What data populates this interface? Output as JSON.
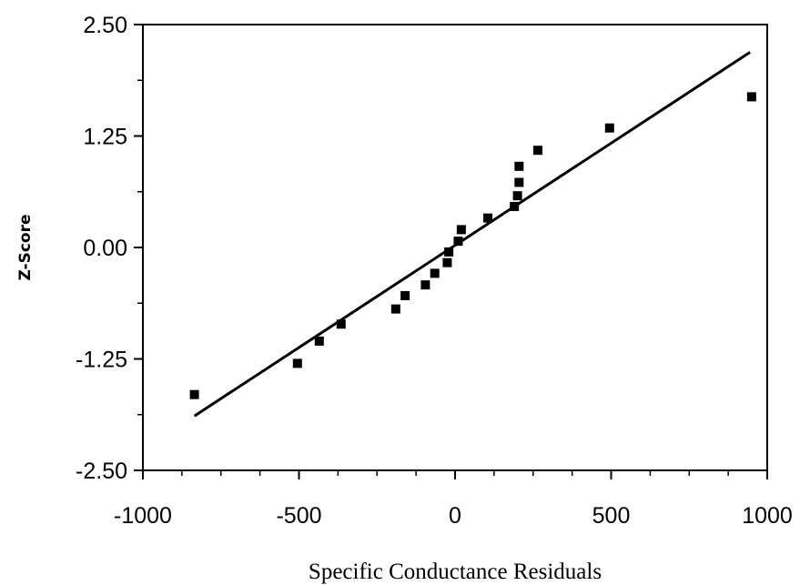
{
  "chart_data": {
    "type": "scatter",
    "title": "",
    "xlabel": "Specific Conductance Residuals",
    "ylabel": "Z-Score",
    "xlim": [
      -1000,
      1000
    ],
    "ylim": [
      -2.5,
      2.5
    ],
    "x_ticks": [
      -1000,
      -500,
      0,
      500,
      1000
    ],
    "x_tick_labels": [
      "-1000",
      "-500",
      "0",
      "500",
      "1000"
    ],
    "y_ticks": [
      -2.5,
      -1.25,
      0,
      1.25,
      2.5
    ],
    "y_tick_labels": [
      "-2.50",
      "-1.25",
      "0.00",
      "1.25",
      "2.50"
    ],
    "grid": false,
    "series": [
      {
        "type": "scatter",
        "marker": "square",
        "color": "#000000",
        "points": [
          {
            "x": -835,
            "y": -1.65
          },
          {
            "x": -505,
            "y": -1.3
          },
          {
            "x": -435,
            "y": -1.05
          },
          {
            "x": -365,
            "y": -0.86
          },
          {
            "x": -190,
            "y": -0.69
          },
          {
            "x": -160,
            "y": -0.54
          },
          {
            "x": -95,
            "y": -0.42
          },
          {
            "x": -65,
            "y": -0.29
          },
          {
            "x": -25,
            "y": -0.17
          },
          {
            "x": -20,
            "y": -0.05
          },
          {
            "x": 10,
            "y": 0.07
          },
          {
            "x": 20,
            "y": 0.2
          },
          {
            "x": 105,
            "y": 0.33
          },
          {
            "x": 190,
            "y": 0.46
          },
          {
            "x": 200,
            "y": 0.58
          },
          {
            "x": 205,
            "y": 0.73
          },
          {
            "x": 205,
            "y": 0.91
          },
          {
            "x": 265,
            "y": 1.09
          },
          {
            "x": 495,
            "y": 1.34
          },
          {
            "x": 950,
            "y": 1.69
          }
        ]
      },
      {
        "type": "line",
        "color": "#000000",
        "points": [
          {
            "x": -835,
            "y": -1.89
          },
          {
            "x": 945,
            "y": 2.19
          }
        ]
      }
    ]
  }
}
